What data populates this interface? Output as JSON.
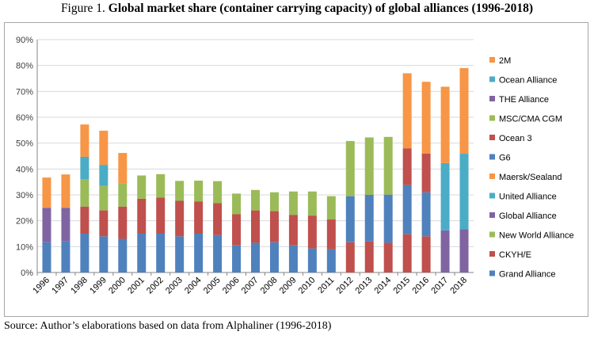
{
  "figure": {
    "label": "Figure 1.",
    "title": "Global market share (container carrying capacity) of global alliances (1996-2018)",
    "source": "Source: Author’s elaborations based on data from Alphaliner (1996-2018)"
  },
  "chart_data": {
    "type": "bar",
    "stacked": true,
    "title": "Global market share (container carrying capacity) of global alliances (1996-2018)",
    "xlabel": "",
    "ylabel": "",
    "ylim": [
      0,
      90
    ],
    "yticks": [
      "0%",
      "10%",
      "20%",
      "30%",
      "40%",
      "50%",
      "60%",
      "70%",
      "80%",
      "90%"
    ],
    "grid": true,
    "legend_position": "right",
    "categories": [
      "1996",
      "1997",
      "1998",
      "1999",
      "2000",
      "2001",
      "2002",
      "2003",
      "2004",
      "2005",
      "2006",
      "2007",
      "2008",
      "2009",
      "2010",
      "2011",
      "2012",
      "2013",
      "2014",
      "2015",
      "2016",
      "2017",
      "2018"
    ],
    "series": [
      {
        "name": "Grand Alliance",
        "color": "#4f81bd",
        "values": [
          11.7,
          12,
          15,
          14,
          13,
          15,
          15,
          14,
          15,
          14.5,
          10.5,
          11.5,
          11.7,
          10.5,
          9.3,
          9,
          0,
          0,
          0,
          0,
          0,
          0,
          0
        ]
      },
      {
        "name": "CKYH/E",
        "color": "#c0504d",
        "values": [
          0,
          0,
          10.5,
          10,
          12.5,
          13.5,
          14,
          13.7,
          12.5,
          12.3,
          12,
          12.5,
          12,
          11.8,
          12.7,
          11.5,
          11.7,
          12,
          11.5,
          14.8,
          14,
          0,
          0
        ]
      },
      {
        "name": "New World Alliance",
        "color": "#9bbb59",
        "values": [
          0,
          0,
          10.5,
          9.5,
          9,
          9,
          9,
          7.7,
          8,
          8.5,
          8,
          7.9,
          7.3,
          9,
          9.3,
          9,
          0,
          0,
          0,
          0,
          0,
          0,
          0
        ]
      },
      {
        "name": "Global Alliance",
        "color": "#8064a2",
        "values": [
          13.3,
          13,
          0,
          0,
          0,
          0,
          0,
          0,
          0,
          0,
          0,
          0,
          0,
          0,
          0,
          0,
          0,
          0,
          0,
          0,
          0,
          0,
          0
        ]
      },
      {
        "name": "United Alliance",
        "color": "#4bacc6",
        "values": [
          0,
          0,
          8.7,
          8.1,
          0,
          0,
          0,
          0,
          0,
          0,
          0,
          0,
          0,
          0,
          0,
          0,
          0,
          0,
          0,
          0,
          0,
          0,
          0
        ]
      },
      {
        "name": "Maersk/Sealand",
        "color": "#f79646",
        "values": [
          11.7,
          12.9,
          12.5,
          13.2,
          11.7,
          0,
          0,
          0,
          0,
          0,
          0,
          0,
          0,
          0,
          0,
          0,
          0,
          0,
          0,
          0,
          0,
          0,
          0
        ]
      },
      {
        "name": "G6",
        "color": "#4f81bd",
        "values": [
          0,
          0,
          0,
          0,
          0,
          0,
          0,
          0,
          0,
          0,
          0,
          0,
          0,
          0,
          0,
          0,
          17.8,
          18,
          18.6,
          19,
          17,
          0,
          0
        ]
      },
      {
        "name": "Ocean 3",
        "color": "#c0504d",
        "values": [
          0,
          0,
          0,
          0,
          0,
          0,
          0,
          0,
          0,
          0,
          0,
          0,
          0,
          0,
          0,
          0,
          0,
          0,
          0,
          14.2,
          15,
          0,
          0
        ]
      },
      {
        "name": "MSC/CMA CGM",
        "color": "#9bbb59",
        "values": [
          0,
          0,
          0,
          0,
          0,
          0,
          0,
          0,
          0,
          0,
          0,
          0,
          0,
          0,
          0,
          0,
          21.3,
          22.2,
          22.3,
          0,
          0,
          0,
          0
        ]
      },
      {
        "name": "THE Alliance",
        "color": "#8064a2",
        "values": [
          0,
          0,
          0,
          0,
          0,
          0,
          0,
          0,
          0,
          0,
          0,
          0,
          0,
          0,
          0,
          0,
          0,
          0,
          0,
          0,
          0,
          16.3,
          16.7
        ]
      },
      {
        "name": "Ocean Alliance",
        "color": "#4bacc6",
        "values": [
          0,
          0,
          0,
          0,
          0,
          0,
          0,
          0,
          0,
          0,
          0,
          0,
          0,
          0,
          0,
          0,
          0,
          0,
          0,
          0,
          0,
          26,
          29.2
        ]
      },
      {
        "name": "2M",
        "color": "#f79646",
        "values": [
          0,
          0,
          0,
          0,
          0,
          0,
          0,
          0,
          0,
          0,
          0,
          0,
          0,
          0,
          0,
          0,
          0,
          0,
          0,
          29,
          27.7,
          29.5,
          33.1
        ]
      }
    ],
    "legend_order": [
      "2M",
      "Ocean Alliance",
      "THE Alliance",
      "MSC/CMA CGM",
      "Ocean 3",
      "G6",
      "Maersk/Sealand",
      "United Alliance",
      "Global Alliance",
      "New World Alliance",
      "CKYH/E",
      "Grand Alliance"
    ]
  }
}
